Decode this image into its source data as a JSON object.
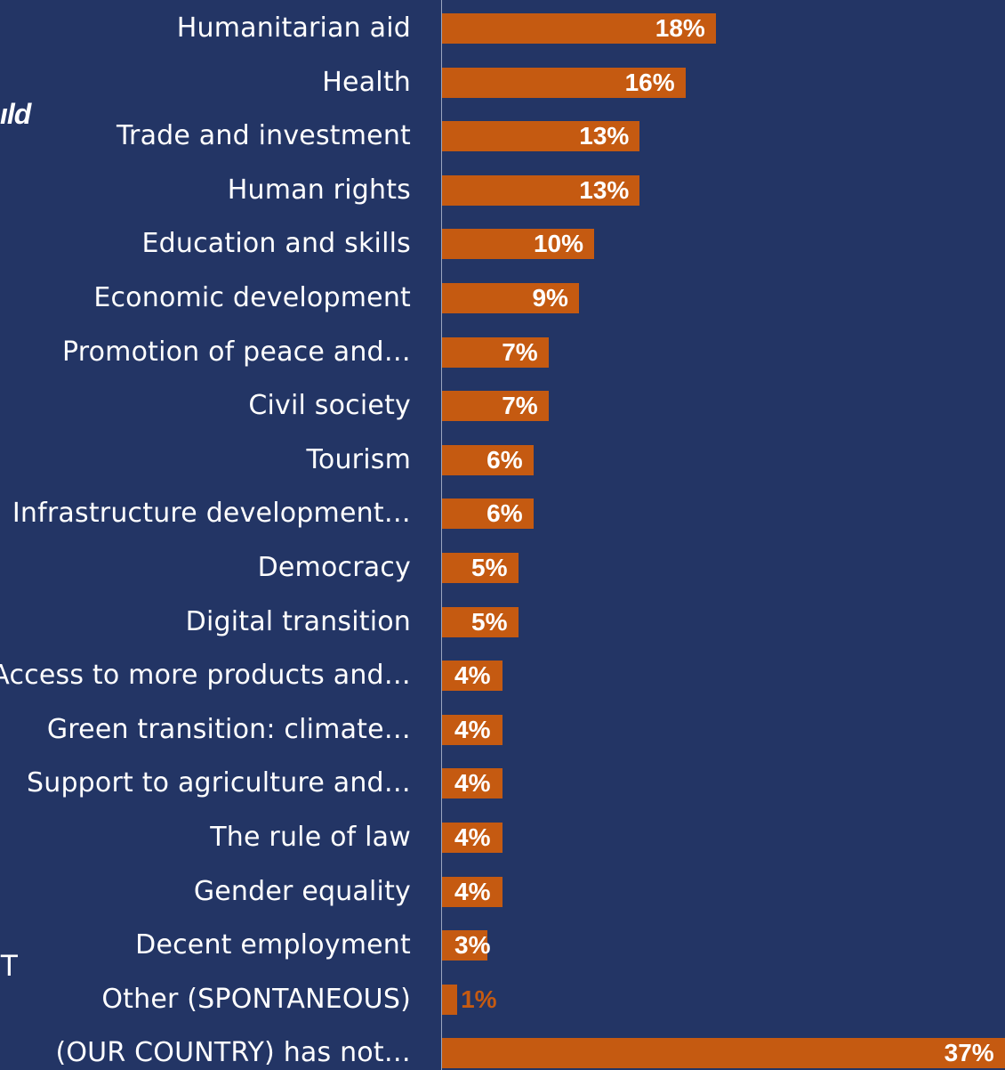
{
  "fragments": {
    "top": "ıld",
    "bottom": "T"
  },
  "colors": {
    "background": "#233565",
    "bar": "#c55a11",
    "label": "#ffffff",
    "value_text": "#ffffff",
    "small_value_text": "#c55a11"
  },
  "chart_data": {
    "type": "bar",
    "orientation": "horizontal",
    "categories": [
      "Humanitarian aid",
      "Health",
      "Trade and investment",
      "Human rights",
      "Education and skills",
      "Economic development",
      "Promotion of peace and…",
      "Civil society",
      "Tourism",
      "Infrastructure development…",
      "Democracy",
      "Digital transition",
      "Access to more products and…",
      "Green transition: climate…",
      "Support to agriculture and…",
      "The rule of law",
      "Gender equality",
      "Decent employment",
      "Other (SPONTANEOUS)",
      "(OUR COUNTRY) has not…"
    ],
    "values": [
      18,
      16,
      13,
      13,
      10,
      9,
      7,
      7,
      6,
      6,
      5,
      5,
      4,
      4,
      4,
      4,
      4,
      3,
      1,
      37
    ],
    "value_labels": [
      "18%",
      "16%",
      "13%",
      "13%",
      "10%",
      "9%",
      "7%",
      "7%",
      "6%",
      "6%",
      "5%",
      "5%",
      "4%",
      "4%",
      "4%",
      "4%",
      "4%",
      "3%",
      "1%",
      "37%"
    ],
    "xlim": [
      0,
      37
    ],
    "grid": false
  }
}
